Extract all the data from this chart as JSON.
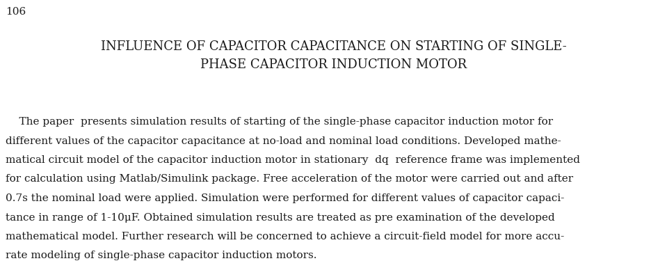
{
  "page_number": "106",
  "title_line1": "INFLUENCE OF CAPACITOR CAPACITANCE ON STARTING OF SINGLE-",
  "title_line2": "PHASE CAPACITOR INDUCTION MOTOR",
  "body_lines": [
    "    The paper  presents simulation results of starting of the single-phase capacitor induction motor for",
    "different values of the capacitor capacitance at no-load and nominal load conditions. Developed mathe-",
    "matical circuit model of the capacitor induction motor in stationary  dq  reference frame was implemented",
    "for calculation using Matlab/Simulink package. Free acceleration of the motor were carried out and after",
    "0.7s the nominal load were applied. Simulation were performed for different values of capacitor capaci-",
    "tance in range of 1-10μF. Obtained simulation results are treated as pre examination of the developed",
    "mathematical model. Further research will be concerned to achieve a circuit-field model for more accu-",
    "rate modeling of single-phase capacitor induction motors."
  ],
  "background_color": "#ffffff",
  "text_color": "#1a1a1a",
  "page_num_fontsize": 11,
  "title_fontsize": 13,
  "body_fontsize": 11,
  "fig_width": 9.59,
  "fig_height": 3.98,
  "dpi": 100
}
